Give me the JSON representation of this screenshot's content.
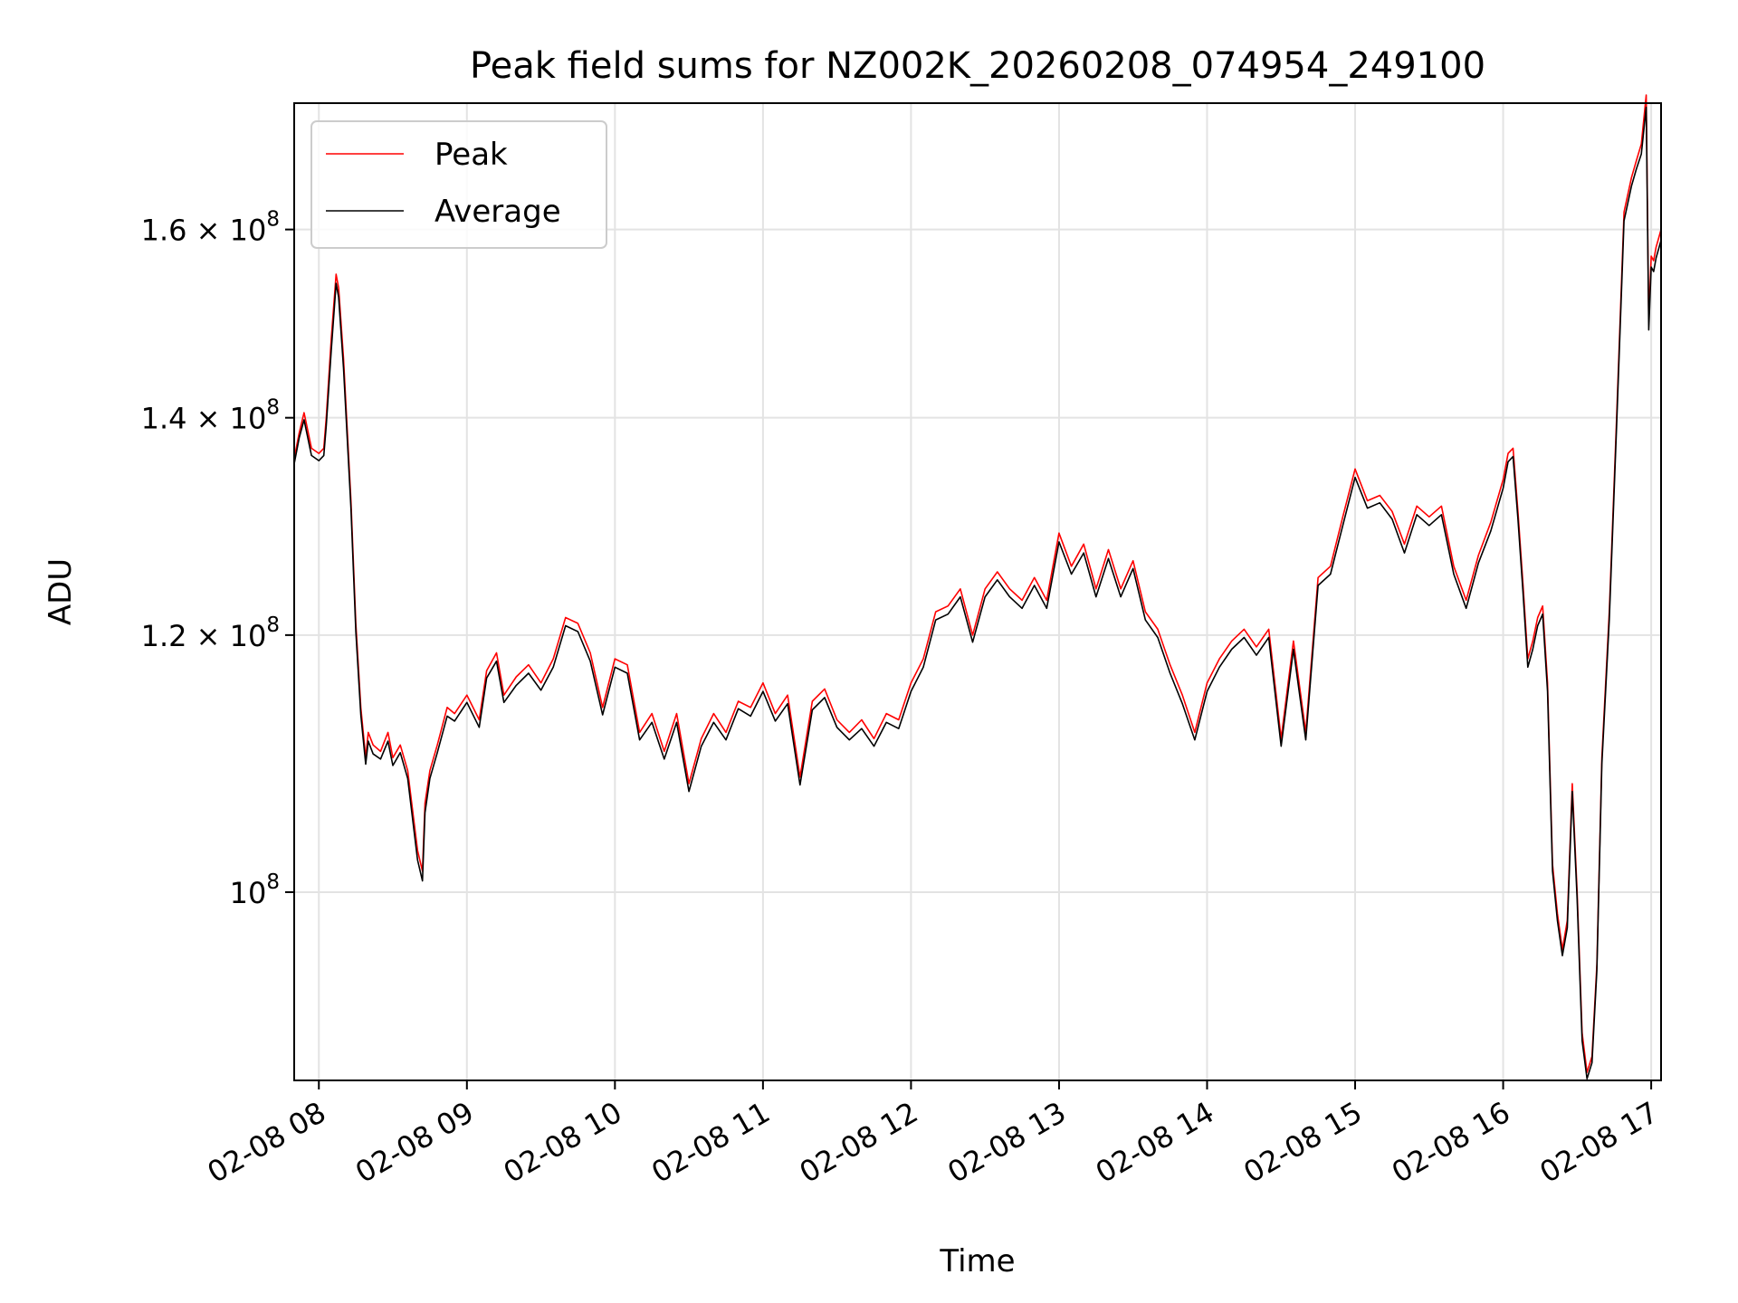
{
  "chart_data": {
    "type": "line",
    "title": "Peak field sums for NZ002K_20260208_074954_249100",
    "xlabel": "Time",
    "ylabel": "ADU",
    "y_scale": "log",
    "grid": true,
    "legend_position": "upper-left",
    "xlim": [
      "2026-02-08 07:50",
      "2026-02-08 17:04"
    ],
    "ylim": [
      87500000,
      175000000
    ],
    "x_ticks": [
      {
        "value": "2026-02-08 08:00",
        "label": "02-08 08"
      },
      {
        "value": "2026-02-08 09:00",
        "label": "02-08 09"
      },
      {
        "value": "2026-02-08 10:00",
        "label": "02-08 10"
      },
      {
        "value": "2026-02-08 11:00",
        "label": "02-08 11"
      },
      {
        "value": "2026-02-08 12:00",
        "label": "02-08 12"
      },
      {
        "value": "2026-02-08 13:00",
        "label": "02-08 13"
      },
      {
        "value": "2026-02-08 14:00",
        "label": "02-08 14"
      },
      {
        "value": "2026-02-08 15:00",
        "label": "02-08 15"
      },
      {
        "value": "2026-02-08 16:00",
        "label": "02-08 16"
      },
      {
        "value": "2026-02-08 17:00",
        "label": "02-08 17"
      }
    ],
    "y_ticks": [
      {
        "value": 100000000,
        "label": "10",
        "exp": "8"
      },
      {
        "value": 120000000,
        "label": "1.2 × 10",
        "exp": "8"
      },
      {
        "value": 140000000,
        "label": "1.4 × 10",
        "exp": "8"
      },
      {
        "value": 160000000,
        "label": "1.6 × 10",
        "exp": "8"
      }
    ],
    "series": [
      {
        "name": "Peak",
        "color": "#ff0000",
        "x": [
          "2026-02-08 07:50",
          "2026-02-08 07:52",
          "2026-02-08 07:54",
          "2026-02-08 07:57",
          "2026-02-08 08:00",
          "2026-02-08 08:02",
          "2026-02-08 08:03",
          "2026-02-08 08:05",
          "2026-02-08 08:07",
          "2026-02-08 08:08",
          "2026-02-08 08:10",
          "2026-02-08 08:13",
          "2026-02-08 08:15",
          "2026-02-08 08:17",
          "2026-02-08 08:19",
          "2026-02-08 08:20",
          "2026-02-08 08:22",
          "2026-02-08 08:25",
          "2026-02-08 08:28",
          "2026-02-08 08:30",
          "2026-02-08 08:33",
          "2026-02-08 08:36",
          "2026-02-08 08:40",
          "2026-02-08 08:42",
          "2026-02-08 08:43",
          "2026-02-08 08:45",
          "2026-02-08 08:48",
          "2026-02-08 08:52",
          "2026-02-08 08:55",
          "2026-02-08 09:00",
          "2026-02-08 09:05",
          "2026-02-08 09:08",
          "2026-02-08 09:12",
          "2026-02-08 09:15",
          "2026-02-08 09:20",
          "2026-02-08 09:25",
          "2026-02-08 09:30",
          "2026-02-08 09:35",
          "2026-02-08 09:40",
          "2026-02-08 09:45",
          "2026-02-08 09:50",
          "2026-02-08 09:55",
          "2026-02-08 10:00",
          "2026-02-08 10:05",
          "2026-02-08 10:10",
          "2026-02-08 10:15",
          "2026-02-08 10:20",
          "2026-02-08 10:25",
          "2026-02-08 10:30",
          "2026-02-08 10:35",
          "2026-02-08 10:40",
          "2026-02-08 10:45",
          "2026-02-08 10:50",
          "2026-02-08 10:55",
          "2026-02-08 11:00",
          "2026-02-08 11:05",
          "2026-02-08 11:10",
          "2026-02-08 11:15",
          "2026-02-08 11:20",
          "2026-02-08 11:25",
          "2026-02-08 11:30",
          "2026-02-08 11:35",
          "2026-02-08 11:40",
          "2026-02-08 11:45",
          "2026-02-08 11:50",
          "2026-02-08 11:55",
          "2026-02-08 12:00",
          "2026-02-08 12:05",
          "2026-02-08 12:10",
          "2026-02-08 12:15",
          "2026-02-08 12:20",
          "2026-02-08 12:25",
          "2026-02-08 12:30",
          "2026-02-08 12:35",
          "2026-02-08 12:40",
          "2026-02-08 12:45",
          "2026-02-08 12:50",
          "2026-02-08 12:55",
          "2026-02-08 13:00",
          "2026-02-08 13:05",
          "2026-02-08 13:10",
          "2026-02-08 13:15",
          "2026-02-08 13:20",
          "2026-02-08 13:25",
          "2026-02-08 13:30",
          "2026-02-08 13:35",
          "2026-02-08 13:40",
          "2026-02-08 13:45",
          "2026-02-08 13:50",
          "2026-02-08 13:55",
          "2026-02-08 14:00",
          "2026-02-08 14:05",
          "2026-02-08 14:10",
          "2026-02-08 14:15",
          "2026-02-08 14:20",
          "2026-02-08 14:25",
          "2026-02-08 14:30",
          "2026-02-08 14:35",
          "2026-02-08 14:40",
          "2026-02-08 14:45",
          "2026-02-08 14:50",
          "2026-02-08 14:55",
          "2026-02-08 15:00",
          "2026-02-08 15:05",
          "2026-02-08 15:10",
          "2026-02-08 15:15",
          "2026-02-08 15:20",
          "2026-02-08 15:25",
          "2026-02-08 15:30",
          "2026-02-08 15:35",
          "2026-02-08 15:40",
          "2026-02-08 15:45",
          "2026-02-08 15:50",
          "2026-02-08 15:55",
          "2026-02-08 16:00",
          "2026-02-08 16:02",
          "2026-02-08 16:04",
          "2026-02-08 16:06",
          "2026-02-08 16:08",
          "2026-02-08 16:10",
          "2026-02-08 16:12",
          "2026-02-08 16:14",
          "2026-02-08 16:16",
          "2026-02-08 16:18",
          "2026-02-08 16:20",
          "2026-02-08 16:22",
          "2026-02-08 16:24",
          "2026-02-08 16:26",
          "2026-02-08 16:28",
          "2026-02-08 16:30",
          "2026-02-08 16:32",
          "2026-02-08 16:34",
          "2026-02-08 16:36",
          "2026-02-08 16:38",
          "2026-02-08 16:40",
          "2026-02-08 16:43",
          "2026-02-08 16:46",
          "2026-02-08 16:49",
          "2026-02-08 16:52",
          "2026-02-08 16:54",
          "2026-02-08 16:56",
          "2026-02-08 16:58",
          "2026-02-08 16:59",
          "2026-02-08 17:00",
          "2026-02-08 17:01",
          "2026-02-08 17:02",
          "2026-02-08 17:03",
          "2026-02-08 17:04"
        ],
        "y": [
          136000000,
          138500000,
          140500000,
          137000000,
          136500000,
          137000000,
          140000000,
          148000000,
          155000000,
          153500000,
          146000000,
          132000000,
          121000000,
          114000000,
          110000000,
          112000000,
          111000000,
          110500000,
          112000000,
          110000000,
          111000000,
          109000000,
          103000000,
          101500000,
          106500000,
          109000000,
          111000000,
          114000000,
          113500000,
          115000000,
          113000000,
          117000000,
          118500000,
          115000000,
          116500000,
          117500000,
          116000000,
          118000000,
          121500000,
          121000000,
          118500000,
          114000000,
          118000000,
          117500000,
          112000000,
          113500000,
          110500000,
          113500000,
          108000000,
          111500000,
          113500000,
          112000000,
          114500000,
          114000000,
          116000000,
          113500000,
          115000000,
          108500000,
          114500000,
          115500000,
          113000000,
          112000000,
          113000000,
          111500000,
          113500000,
          113000000,
          116000000,
          118000000,
          122000000,
          122500000,
          124000000,
          120000000,
          124000000,
          125500000,
          124000000,
          123000000,
          125000000,
          123000000,
          129000000,
          126000000,
          128000000,
          124000000,
          127500000,
          124000000,
          126500000,
          122000000,
          120500000,
          117500000,
          115000000,
          112000000,
          116000000,
          118000000,
          119500000,
          120500000,
          119000000,
          120500000,
          111500000,
          119500000,
          112000000,
          125000000,
          126000000,
          130500000,
          135000000,
          132000000,
          132500000,
          131000000,
          128000000,
          131500000,
          130500000,
          131500000,
          126000000,
          123000000,
          127000000,
          130000000,
          134000000,
          136500000,
          137000000,
          131000000,
          124500000,
          118000000,
          119500000,
          121500000,
          122500000,
          116000000,
          102000000,
          98500000,
          96000000,
          98000000,
          108000000,
          100000000,
          90500000,
          88000000,
          89000000,
          95000000,
          110000000,
          122000000,
          140000000,
          162000000,
          166000000,
          168000000,
          170000000,
          176000000,
          150000000,
          157000000,
          156500000,
          158000000,
          159000000,
          160000000
        ]
      },
      {
        "name": "Average",
        "color": "#000000",
        "x": [
          "2026-02-08 07:50",
          "2026-02-08 07:52",
          "2026-02-08 07:54",
          "2026-02-08 07:57",
          "2026-02-08 08:00",
          "2026-02-08 08:02",
          "2026-02-08 08:03",
          "2026-02-08 08:05",
          "2026-02-08 08:07",
          "2026-02-08 08:08",
          "2026-02-08 08:10",
          "2026-02-08 08:13",
          "2026-02-08 08:15",
          "2026-02-08 08:17",
          "2026-02-08 08:19",
          "2026-02-08 08:20",
          "2026-02-08 08:22",
          "2026-02-08 08:25",
          "2026-02-08 08:28",
          "2026-02-08 08:30",
          "2026-02-08 08:33",
          "2026-02-08 08:36",
          "2026-02-08 08:40",
          "2026-02-08 08:42",
          "2026-02-08 08:43",
          "2026-02-08 08:45",
          "2026-02-08 08:48",
          "2026-02-08 08:52",
          "2026-02-08 08:55",
          "2026-02-08 09:00",
          "2026-02-08 09:05",
          "2026-02-08 09:08",
          "2026-02-08 09:12",
          "2026-02-08 09:15",
          "2026-02-08 09:20",
          "2026-02-08 09:25",
          "2026-02-08 09:30",
          "2026-02-08 09:35",
          "2026-02-08 09:40",
          "2026-02-08 09:45",
          "2026-02-08 09:50",
          "2026-02-08 09:55",
          "2026-02-08 10:00",
          "2026-02-08 10:05",
          "2026-02-08 10:10",
          "2026-02-08 10:15",
          "2026-02-08 10:20",
          "2026-02-08 10:25",
          "2026-02-08 10:30",
          "2026-02-08 10:35",
          "2026-02-08 10:40",
          "2026-02-08 10:45",
          "2026-02-08 10:50",
          "2026-02-08 10:55",
          "2026-02-08 11:00",
          "2026-02-08 11:05",
          "2026-02-08 11:10",
          "2026-02-08 11:15",
          "2026-02-08 11:20",
          "2026-02-08 11:25",
          "2026-02-08 11:30",
          "2026-02-08 11:35",
          "2026-02-08 11:40",
          "2026-02-08 11:45",
          "2026-02-08 11:50",
          "2026-02-08 11:55",
          "2026-02-08 12:00",
          "2026-02-08 12:05",
          "2026-02-08 12:10",
          "2026-02-08 12:15",
          "2026-02-08 12:20",
          "2026-02-08 12:25",
          "2026-02-08 12:30",
          "2026-02-08 12:35",
          "2026-02-08 12:40",
          "2026-02-08 12:45",
          "2026-02-08 12:50",
          "2026-02-08 12:55",
          "2026-02-08 13:00",
          "2026-02-08 13:05",
          "2026-02-08 13:10",
          "2026-02-08 13:15",
          "2026-02-08 13:20",
          "2026-02-08 13:25",
          "2026-02-08 13:30",
          "2026-02-08 13:35",
          "2026-02-08 13:40",
          "2026-02-08 13:45",
          "2026-02-08 13:50",
          "2026-02-08 13:55",
          "2026-02-08 14:00",
          "2026-02-08 14:05",
          "2026-02-08 14:10",
          "2026-02-08 14:15",
          "2026-02-08 14:20",
          "2026-02-08 14:25",
          "2026-02-08 14:30",
          "2026-02-08 14:35",
          "2026-02-08 14:40",
          "2026-02-08 14:45",
          "2026-02-08 14:50",
          "2026-02-08 14:55",
          "2026-02-08 15:00",
          "2026-02-08 15:05",
          "2026-02-08 15:10",
          "2026-02-08 15:15",
          "2026-02-08 15:20",
          "2026-02-08 15:25",
          "2026-02-08 15:30",
          "2026-02-08 15:35",
          "2026-02-08 15:40",
          "2026-02-08 15:45",
          "2026-02-08 15:50",
          "2026-02-08 15:55",
          "2026-02-08 16:00",
          "2026-02-08 16:02",
          "2026-02-08 16:04",
          "2026-02-08 16:06",
          "2026-02-08 16:08",
          "2026-02-08 16:10",
          "2026-02-08 16:12",
          "2026-02-08 16:14",
          "2026-02-08 16:16",
          "2026-02-08 16:18",
          "2026-02-08 16:20",
          "2026-02-08 16:22",
          "2026-02-08 16:24",
          "2026-02-08 16:26",
          "2026-02-08 16:28",
          "2026-02-08 16:30",
          "2026-02-08 16:32",
          "2026-02-08 16:34",
          "2026-02-08 16:36",
          "2026-02-08 16:38",
          "2026-02-08 16:40",
          "2026-02-08 16:43",
          "2026-02-08 16:46",
          "2026-02-08 16:49",
          "2026-02-08 16:52",
          "2026-02-08 16:54",
          "2026-02-08 16:56",
          "2026-02-08 16:58",
          "2026-02-08 16:59",
          "2026-02-08 17:00",
          "2026-02-08 17:01",
          "2026-02-08 17:02",
          "2026-02-08 17:03",
          "2026-02-08 17:04"
        ],
        "y": [
          135500000,
          138000000,
          139800000,
          136300000,
          135800000,
          136300000,
          139200000,
          146800000,
          154000000,
          152500000,
          145000000,
          131300000,
          120300000,
          113400000,
          109500000,
          111300000,
          110300000,
          109900000,
          111300000,
          109400000,
          110400000,
          108400000,
          102300000,
          100800000,
          105800000,
          108400000,
          110400000,
          113300000,
          112900000,
          114400000,
          112400000,
          116400000,
          117800000,
          114400000,
          115800000,
          116800000,
          115400000,
          117300000,
          120800000,
          120300000,
          117800000,
          113400000,
          117300000,
          116800000,
          111400000,
          112800000,
          109900000,
          112800000,
          107400000,
          110900000,
          112800000,
          111400000,
          113900000,
          113300000,
          115300000,
          112900000,
          114300000,
          107900000,
          113800000,
          114800000,
          112400000,
          111400000,
          112300000,
          110900000,
          112800000,
          112300000,
          115300000,
          117300000,
          121300000,
          121800000,
          123300000,
          119400000,
          123300000,
          124800000,
          123300000,
          122300000,
          124300000,
          122300000,
          128200000,
          125300000,
          127200000,
          123300000,
          126700000,
          123300000,
          125800000,
          121300000,
          119800000,
          116800000,
          114300000,
          111400000,
          115300000,
          117300000,
          118800000,
          119800000,
          118300000,
          119800000,
          110900000,
          118800000,
          111400000,
          124300000,
          125300000,
          129700000,
          134200000,
          131300000,
          131800000,
          130300000,
          127200000,
          130700000,
          129700000,
          130700000,
          125300000,
          122300000,
          126300000,
          129200000,
          133200000,
          135700000,
          136200000,
          130300000,
          123800000,
          117300000,
          118800000,
          120800000,
          121800000,
          115300000,
          101500000,
          98000000,
          95600000,
          97500000,
          107400000,
          99500000,
          90000000,
          87600000,
          88600000,
          94600000,
          109500000,
          121300000,
          139200000,
          161000000,
          165000000,
          167000000,
          168800000,
          174500000,
          149000000,
          155800000,
          155300000,
          156800000,
          157800000,
          158800000
        ]
      }
    ]
  }
}
